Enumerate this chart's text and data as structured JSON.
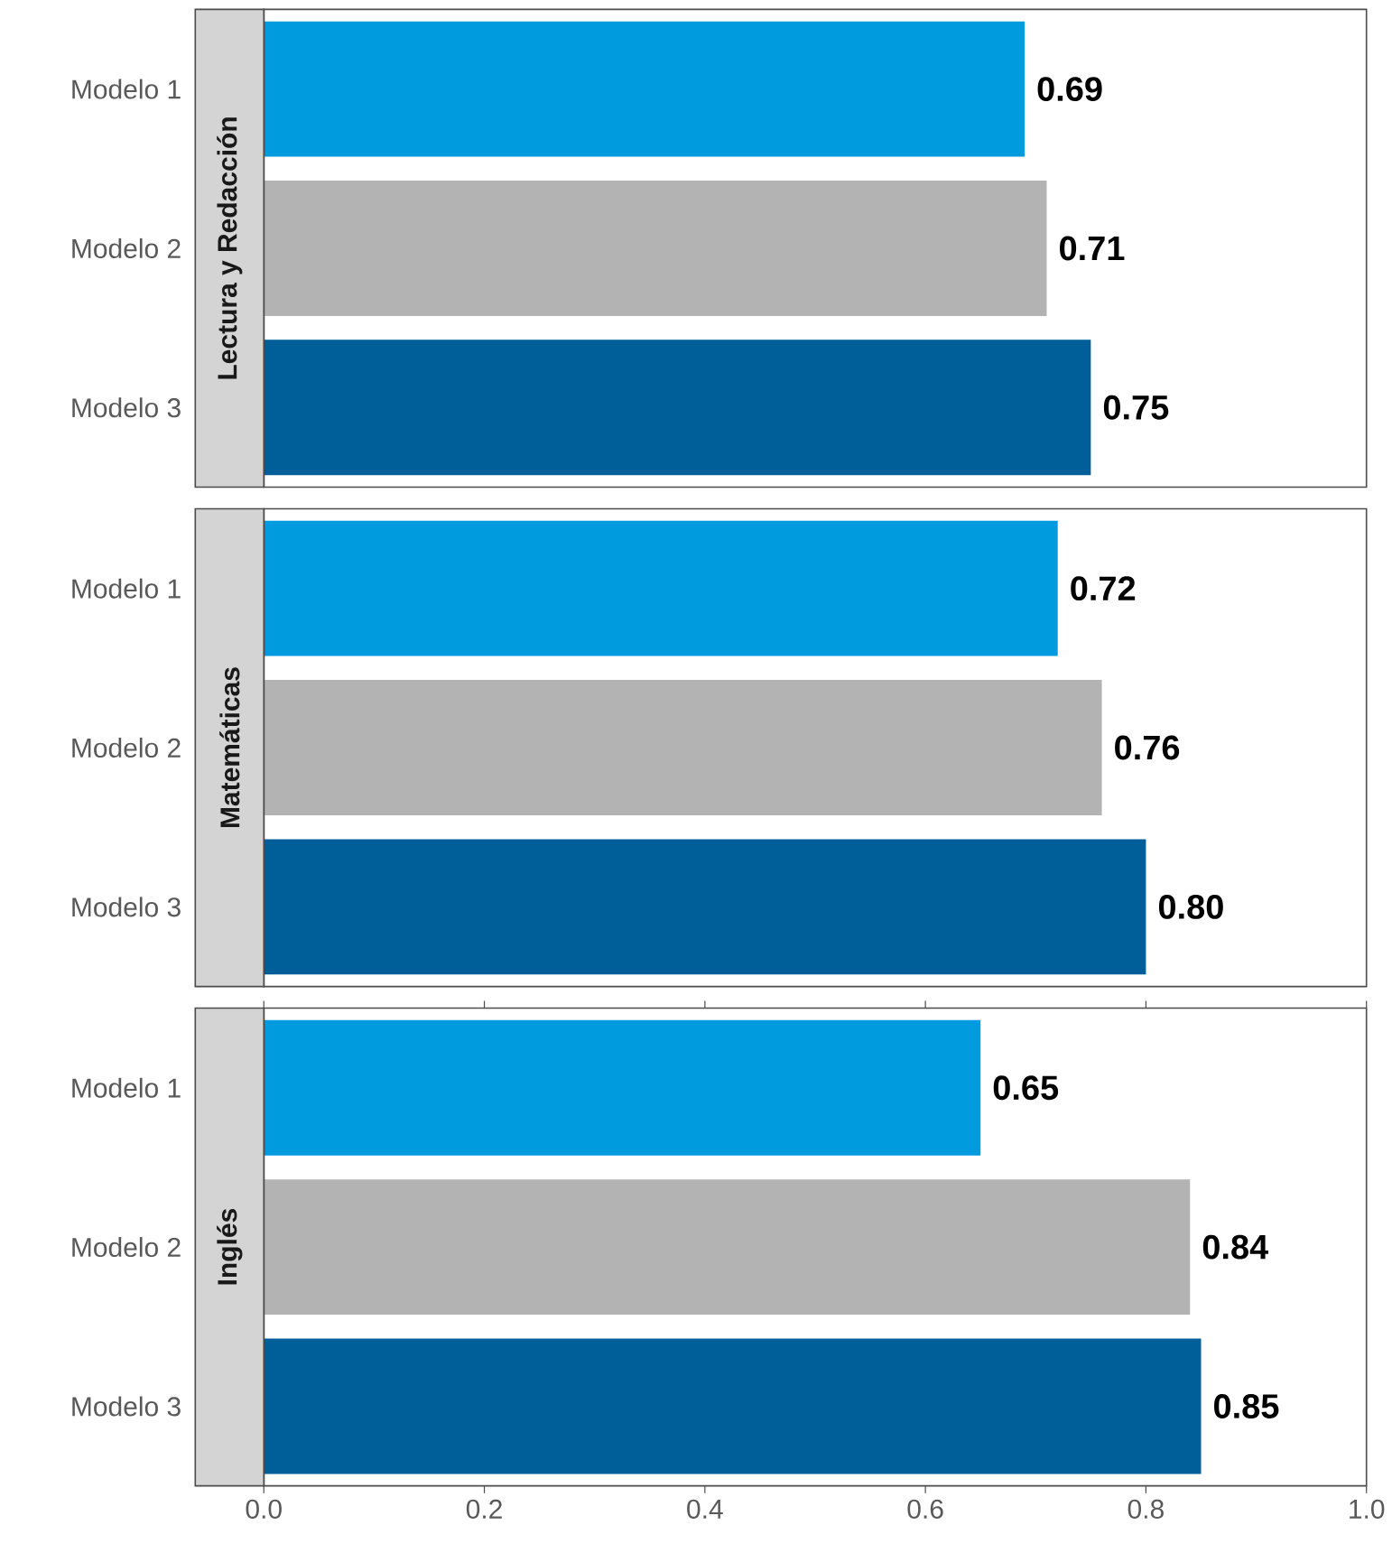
{
  "chart_data": [
    {
      "type": "bar",
      "orientation": "horizontal",
      "title": "Lectura y Redacción",
      "categories": [
        "Modelo 1",
        "Modelo 2",
        "Modelo 3"
      ],
      "values": [
        0.69,
        0.71,
        0.75
      ],
      "value_labels": [
        "0.69",
        "0.71",
        "0.75"
      ],
      "colors": [
        "#009ade",
        "#b3b3b3",
        "#005f99"
      ],
      "xlim": [
        0,
        1.0
      ],
      "tick_labels": "y"
    },
    {
      "type": "bar",
      "orientation": "horizontal",
      "title": "Matemáticas",
      "categories": [
        "Modelo 1",
        "Modelo 2",
        "Modelo 3"
      ],
      "values": [
        0.72,
        0.76,
        0.8
      ],
      "value_labels": [
        "0.72",
        "0.76",
        "0.80"
      ],
      "colors": [
        "#009ade",
        "#b3b3b3",
        "#005f99"
      ],
      "xlim": [
        0,
        1.0
      ],
      "tick_labels": "y"
    },
    {
      "type": "bar",
      "orientation": "horizontal",
      "title": "Inglés",
      "categories": [
        "Modelo 1",
        "Modelo 2",
        "Modelo 3"
      ],
      "values": [
        0.65,
        0.84,
        0.85
      ],
      "value_labels": [
        "0.65",
        "0.84",
        "0.85"
      ],
      "colors": [
        "#009ade",
        "#b3b3b3",
        "#005f99"
      ],
      "xlim": [
        0,
        1.0
      ],
      "xticks": [
        {
          "value": 0,
          "label": "0.0"
        },
        0.2,
        0.4,
        0.6,
        0.8,
        {
          "value": 1.0,
          "label": "1.0"
        }
      ]
    }
  ]
}
